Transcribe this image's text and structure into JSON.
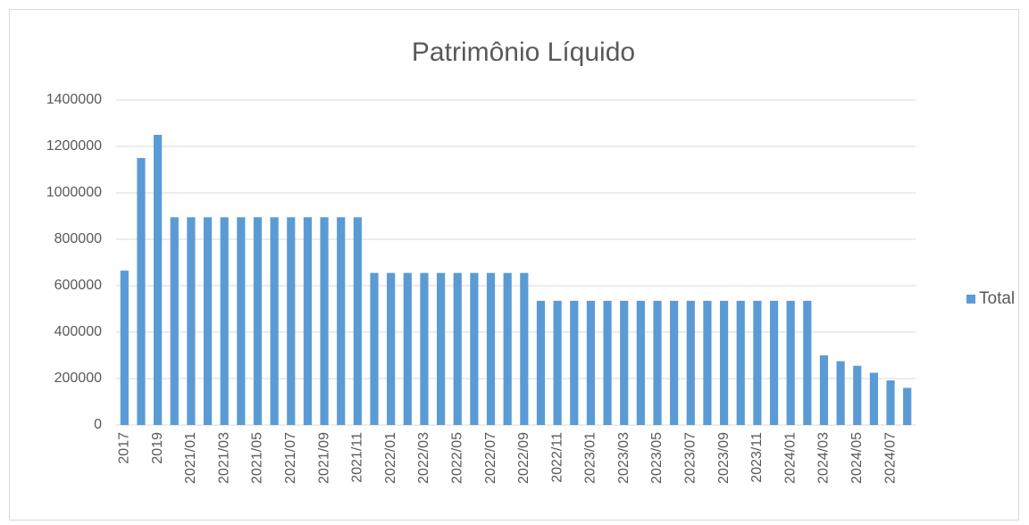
{
  "chart_data": {
    "type": "bar",
    "title": "Patrimônio Líquido",
    "categories": [
      "2017",
      null,
      "2019",
      null,
      "2021/01",
      null,
      "2021/03",
      null,
      "2021/05",
      null,
      "2021/07",
      null,
      "2021/09",
      null,
      "2021/11",
      null,
      "2022/01",
      null,
      "2022/03",
      null,
      "2022/05",
      null,
      "2022/07",
      null,
      "2022/09",
      null,
      "2022/11",
      null,
      "2023/01",
      null,
      "2023/03",
      null,
      "2023/05",
      null,
      "2023/07",
      null,
      "2023/09",
      null,
      "2023/11",
      null,
      "2024/01",
      null,
      "2024/03",
      null,
      "2024/05",
      null,
      "2024/07",
      null
    ],
    "series": [
      {
        "name": "Total",
        "color": "#5b9bd5",
        "values": [
          665000,
          1150000,
          1250000,
          895000,
          895000,
          895000,
          895000,
          895000,
          895000,
          895000,
          895000,
          895000,
          895000,
          895000,
          895000,
          655000,
          655000,
          655000,
          655000,
          655000,
          655000,
          655000,
          655000,
          655000,
          655000,
          535000,
          535000,
          535000,
          535000,
          535000,
          535000,
          535000,
          535000,
          535000,
          535000,
          535000,
          535000,
          535000,
          535000,
          535000,
          535000,
          535000,
          300000,
          275000,
          255000,
          225000,
          192000,
          160000
        ]
      }
    ],
    "ylim": [
      0,
      1400000
    ],
    "yticks": [
      0,
      200000,
      400000,
      600000,
      800000,
      1000000,
      1200000,
      1400000
    ],
    "grid": true,
    "legend": "right"
  }
}
